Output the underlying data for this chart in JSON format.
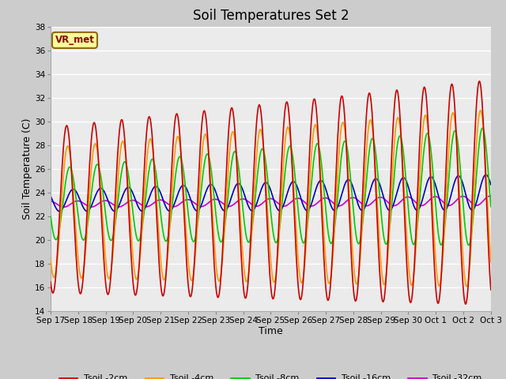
{
  "title": "Soil Temperatures Set 2",
  "xlabel": "Time",
  "ylabel": "Soil Temperature (C)",
  "ylim": [
    14,
    38
  ],
  "yticks": [
    14,
    16,
    18,
    20,
    22,
    24,
    26,
    28,
    30,
    32,
    34,
    36,
    38
  ],
  "background_color": "#cccccc",
  "plot_background": "#ebebeb",
  "annotation_text": "VR_met",
  "legend_labels": [
    "Tsoil -2cm",
    "Tsoil -4cm",
    "Tsoil -8cm",
    "Tsoil -16cm",
    "Tsoil -32cm"
  ],
  "line_colors": [
    "#cc0000",
    "#ff9900",
    "#00cc00",
    "#0000cc",
    "#cc00cc"
  ],
  "n_days": 16,
  "pts_per_day": 48,
  "start_day": 17
}
